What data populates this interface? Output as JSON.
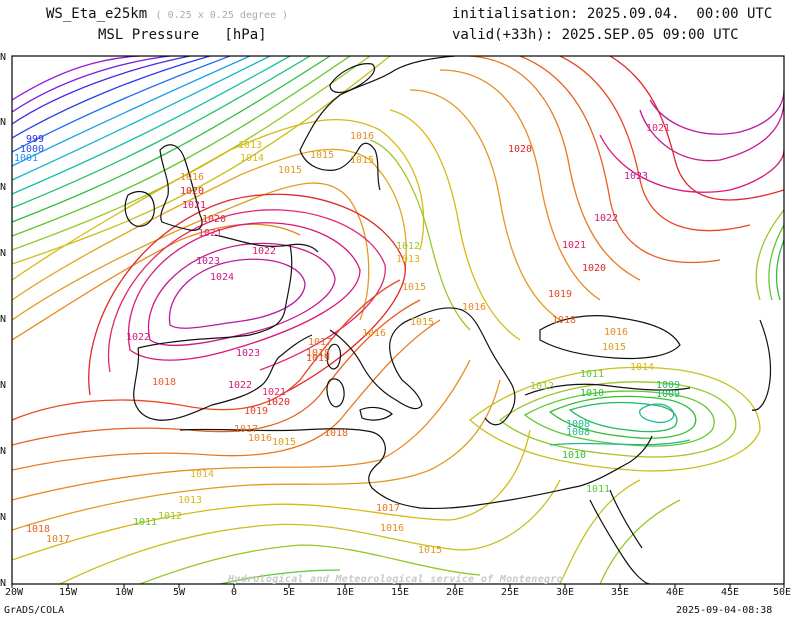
{
  "header": {
    "model": "WS_Eta_e25km",
    "resolution": "( 0.25 x 0.25 degree )",
    "init": "initialisation: 2025.09.04.  00:00 UTC",
    "field": "MSL Pressure   [hPa]",
    "valid": "valid(+33h): 2025.SEP.05 09:00 UTC"
  },
  "axis": {
    "lon_ticks": [
      "20W",
      "15W",
      "10W",
      "5W",
      "0",
      "5E",
      "10E",
      "15E",
      "20E",
      "25E",
      "30E",
      "35E",
      "40E",
      "45E",
      "50E"
    ],
    "lat_ticks": [
      "N",
      "N",
      "N",
      "N",
      "N",
      "N",
      "N",
      "N",
      "N"
    ]
  },
  "contour_labels": [
    {
      "t": "999",
      "c": "#2a2ae8"
    },
    {
      "t": "1000",
      "c": "#2a50e8"
    },
    {
      "t": "1001",
      "c": "#1e90ff"
    },
    {
      "t": "1013",
      "c": "#d8b818"
    },
    {
      "t": "1014",
      "c": "#d8b818"
    },
    {
      "t": "1015",
      "c": "#e09a20"
    },
    {
      "t": "1016",
      "c": "#e88a20"
    },
    {
      "t": "1015",
      "c": "#e09a20"
    },
    {
      "t": "1015",
      "c": "#e09a20"
    },
    {
      "t": "1016",
      "c": "#e88a20"
    },
    {
      "t": "1020",
      "c": "#e02828"
    },
    {
      "t": "1021",
      "c": "#e02870"
    },
    {
      "t": "1022",
      "c": "#d81878"
    },
    {
      "t": "1023",
      "c": "#c81890"
    },
    {
      "t": "1024",
      "c": "#c81890"
    },
    {
      "t": "1020",
      "c": "#e02828"
    },
    {
      "t": "1021",
      "c": "#d81860"
    },
    {
      "t": "1022",
      "c": "#d81878"
    },
    {
      "t": "1012",
      "c": "#98c828"
    },
    {
      "t": "1013",
      "c": "#d8b818"
    },
    {
      "t": "1015",
      "c": "#e09a20"
    },
    {
      "t": "1016",
      "c": "#e88a20"
    },
    {
      "t": "1015",
      "c": "#e09a20"
    },
    {
      "t": "1016",
      "c": "#e88a20"
    },
    {
      "t": "1017",
      "c": "#e87820"
    },
    {
      "t": "1018",
      "c": "#e86020"
    },
    {
      "t": "1019",
      "c": "#e84820"
    },
    {
      "t": "1023",
      "c": "#c81890"
    },
    {
      "t": "1022",
      "c": "#d81878"
    },
    {
      "t": "1021",
      "c": "#e02870"
    },
    {
      "t": "1020",
      "c": "#e02828"
    },
    {
      "t": "1019",
      "c": "#e84820"
    },
    {
      "t": "1018",
      "c": "#e86020"
    },
    {
      "t": "1017",
      "c": "#e87820"
    },
    {
      "t": "1016",
      "c": "#e88a20"
    },
    {
      "t": "1015",
      "c": "#e09a20"
    },
    {
      "t": "1014",
      "c": "#d8b818"
    },
    {
      "t": "1013",
      "c": "#d8b818"
    },
    {
      "t": "1012",
      "c": "#98c828"
    },
    {
      "t": "1011",
      "c": "#60c830"
    },
    {
      "t": "1018",
      "c": "#e86020"
    },
    {
      "t": "1017",
      "c": "#e87820"
    },
    {
      "t": "1018",
      "c": "#e86020"
    },
    {
      "t": "1017",
      "c": "#e87820"
    },
    {
      "t": "1016",
      "c": "#e88a20"
    },
    {
      "t": "1015",
      "c": "#e09a20"
    },
    {
      "t": "1021",
      "c": "#e02870"
    },
    {
      "t": "1020",
      "c": "#e02828"
    },
    {
      "t": "1023",
      "c": "#c81890"
    },
    {
      "t": "1022",
      "c": "#d81878"
    },
    {
      "t": "1021",
      "c": "#d81860"
    },
    {
      "t": "1020",
      "c": "#e02828"
    },
    {
      "t": "1019",
      "c": "#e84820"
    },
    {
      "t": "1018",
      "c": "#e86020"
    },
    {
      "t": "1016",
      "c": "#e88a20"
    },
    {
      "t": "1015",
      "c": "#e09a20"
    },
    {
      "t": "1014",
      "c": "#d8b818"
    },
    {
      "t": "1012",
      "c": "#98c828"
    },
    {
      "t": "1011",
      "c": "#60c830"
    },
    {
      "t": "1010",
      "c": "#30c030"
    },
    {
      "t": "1009",
      "c": "#20b860"
    },
    {
      "t": "1008",
      "c": "#20b890"
    },
    {
      "t": "1009",
      "c": "#20b860"
    },
    {
      "t": "1008",
      "c": "#20b890"
    },
    {
      "t": "1010",
      "c": "#30c030"
    },
    {
      "t": "1011",
      "c": "#60c830"
    }
  ],
  "watermark": "Hydrological and Meteorological service of Montenegro",
  "footer": {
    "left": "GrADS/COLA",
    "right": "2025-09-04-08:38"
  }
}
